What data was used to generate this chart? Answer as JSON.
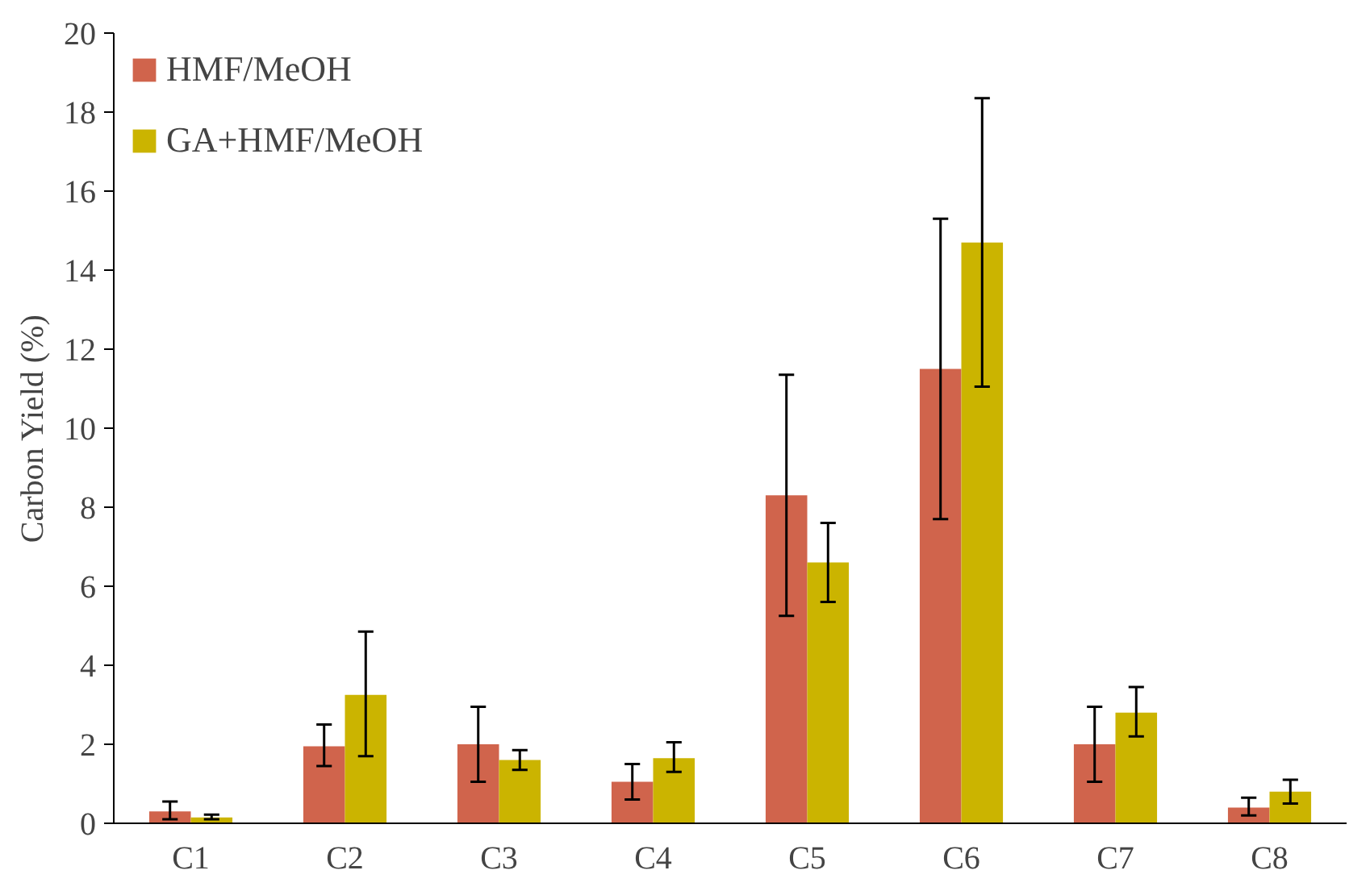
{
  "chart_data": {
    "type": "bar",
    "ylabel": "Carbon Yield (%)",
    "categories": [
      "C1",
      "C2",
      "C3",
      "C4",
      "C5",
      "C6",
      "C7",
      "C8"
    ],
    "series": [
      {
        "name": "HMF/MeOH",
        "color": "#d0644c",
        "values": [
          0.3,
          1.95,
          2.0,
          1.05,
          8.3,
          11.5,
          2.0,
          0.4
        ],
        "errors": [
          [
            0.1,
            0.55
          ],
          [
            1.45,
            2.5
          ],
          [
            1.05,
            2.95
          ],
          [
            0.6,
            1.5
          ],
          [
            5.25,
            11.35
          ],
          [
            7.7,
            15.3
          ],
          [
            1.05,
            2.95
          ],
          [
            0.2,
            0.65
          ]
        ]
      },
      {
        "name": "GA+HMF/MeOH",
        "color": "#cbb400",
        "values": [
          0.15,
          3.25,
          1.6,
          1.65,
          6.6,
          14.7,
          2.8,
          0.8
        ],
        "errors": [
          [
            0.1,
            0.22
          ],
          [
            1.7,
            4.85
          ],
          [
            1.35,
            1.85
          ],
          [
            1.3,
            2.05
          ],
          [
            5.6,
            7.6
          ],
          [
            11.05,
            18.35
          ],
          [
            2.2,
            3.45
          ],
          [
            0.5,
            1.1
          ]
        ]
      }
    ],
    "ylim": [
      0,
      20
    ],
    "yticks": [
      0,
      2,
      4,
      6,
      8,
      10,
      12,
      14,
      16,
      18,
      20
    ],
    "grid": false,
    "legend": "top left"
  }
}
